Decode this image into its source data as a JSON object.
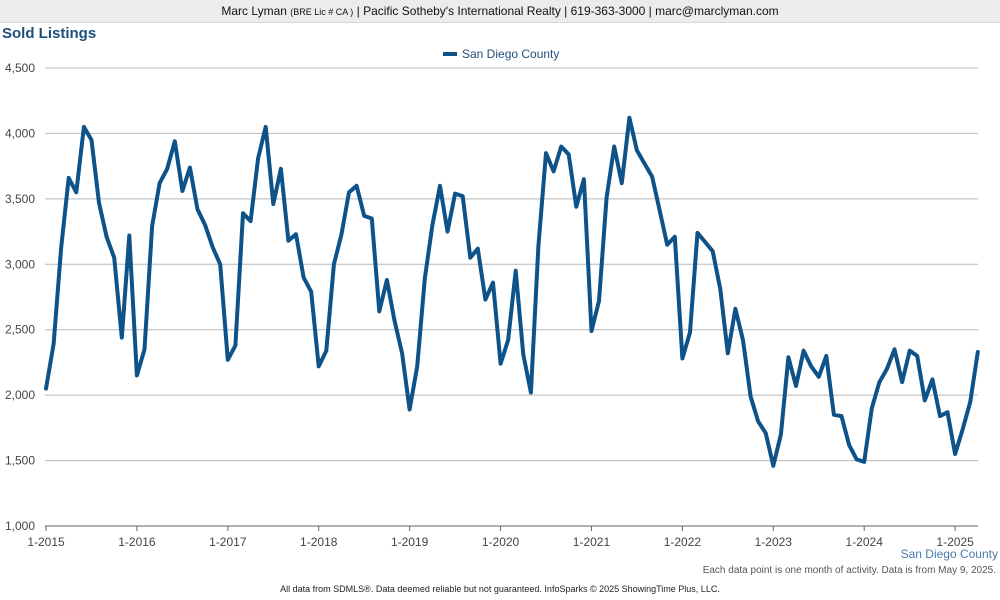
{
  "header": {
    "name": "Marc Lyman",
    "license": "(BRE Lic # CA )",
    "rest": "| Pacific Sotheby's International Realty | 619-363-3000 | marc@marclyman.com"
  },
  "footer": {
    "series_label": "San Diego County",
    "note": "Each data point is one month of activity. Data is from May 9, 2025.",
    "disclaimer": "All data from SDMLS®. Data deemed reliable but not guaranteed. InfoSparks © 2025 ShowingTime Plus, LLC."
  },
  "chart_data": {
    "type": "line",
    "title": "Sold Listings",
    "legend_position": "top-center",
    "grid": true,
    "ylim": [
      1000,
      4500
    ],
    "y_ticks": [
      "1,000",
      "1,500",
      "2,000",
      "2,500",
      "3,000",
      "3,500",
      "4,000",
      "4,500"
    ],
    "x_ticks": [
      "1-2015",
      "1-2016",
      "1-2017",
      "1-2018",
      "1-2019",
      "1-2020",
      "1-2021",
      "1-2022",
      "1-2023",
      "1-2024",
      "1-2025"
    ],
    "x_start": "2015-01",
    "colors": {
      "series": "#0d5288",
      "grid": "#b8b8b8",
      "text": "#1e4f7a"
    },
    "series": [
      {
        "name": "San Diego County",
        "values": [
          2050,
          2390,
          3130,
          3660,
          3550,
          4050,
          3950,
          3470,
          3210,
          3050,
          2440,
          3220,
          2150,
          2350,
          3290,
          3620,
          3730,
          3940,
          3560,
          3740,
          3420,
          3300,
          3130,
          3000,
          2270,
          2380,
          3390,
          3330,
          3810,
          4050,
          3460,
          3730,
          3180,
          3230,
          2900,
          2790,
          2220,
          2340,
          3000,
          3230,
          3550,
          3600,
          3370,
          3350,
          2640,
          2880,
          2570,
          2320,
          1890,
          2220,
          2890,
          3300,
          3600,
          3250,
          3540,
          3520,
          3050,
          3120,
          2730,
          2860,
          2240,
          2420,
          2950,
          2310,
          2020,
          3140,
          3850,
          3710,
          3900,
          3840,
          3440,
          3650,
          2490,
          2720,
          3510,
          3900,
          3620,
          4120,
          3870,
          3770,
          3670,
          3410,
          3150,
          3210,
          2280,
          2480,
          3240,
          3170,
          3100,
          2810,
          2320,
          2660,
          2420,
          1990,
          1800,
          1710,
          1460,
          1700,
          2290,
          2070,
          2340,
          2220,
          2140,
          2300,
          1850,
          1840,
          1620,
          1510,
          1490,
          1900,
          2100,
          2200,
          2350,
          2100,
          2340,
          2300,
          1960,
          2120,
          1840,
          1870,
          1550,
          1740,
          1950,
          2330
        ]
      }
    ]
  }
}
